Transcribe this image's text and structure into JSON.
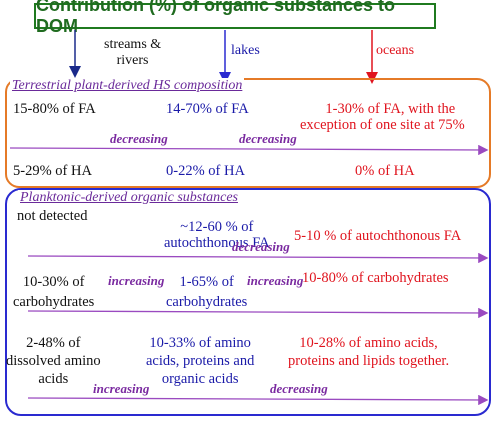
{
  "title": "Contribution (%) of organic substances to DOM",
  "headers": {
    "streams": [
      "streams &",
      "rivers"
    ],
    "lakes": "lakes",
    "oceans": "oceans"
  },
  "terrestrial": {
    "title": "Terrestrial plant-derived HS composition",
    "fa_streams": "15-80% of FA",
    "fa_lakes": "14-70% of FA",
    "fa_oceans": [
      "1-30% of FA, with the",
      "exception of one site at 75%"
    ],
    "trend1": "decreasing",
    "trend2": "decreasing",
    "ha_streams": "5-29% of HA",
    "ha_lakes": "0-22% of HA",
    "ha_oceans": "0% of HA"
  },
  "planktonic": {
    "title": "Planktonic-derived organic substances",
    "fa_streams": "not detected",
    "fa_lakes": [
      "~12-60 % of",
      "autochthonous FA"
    ],
    "fa_trend": "decreasing",
    "fa_oceans": "5-10 % of autochthonous FA",
    "carb_streams": [
      "10-30% of",
      "carbohydrates"
    ],
    "carb_trend1": "increasing",
    "carb_lakes": [
      "1-65% of",
      "carbohydrates"
    ],
    "carb_trend2": "increasing",
    "carb_oceans": "10-80% of carbohydrates",
    "amino_streams": [
      "2-48% of",
      "dissolved amino",
      "acids"
    ],
    "amino_lakes": [
      "10-33% of amino",
      "acids, proteins and",
      "organic acids"
    ],
    "amino_oceans": [
      "10-28% of amino acids,",
      "proteins and lipids together."
    ],
    "amino_trend1": "increasing",
    "amino_trend2": "decreasing"
  },
  "colors": {
    "title": "#1f6b1f",
    "stream_arrow": "#1a2a8a",
    "lake_arrow": "#2a2ad0",
    "ocean_arrow": "#e0141e",
    "trend_arrow": "#9a4ac0",
    "panel1_border": "#e57a27",
    "panel2_border": "#2a2ad0"
  }
}
